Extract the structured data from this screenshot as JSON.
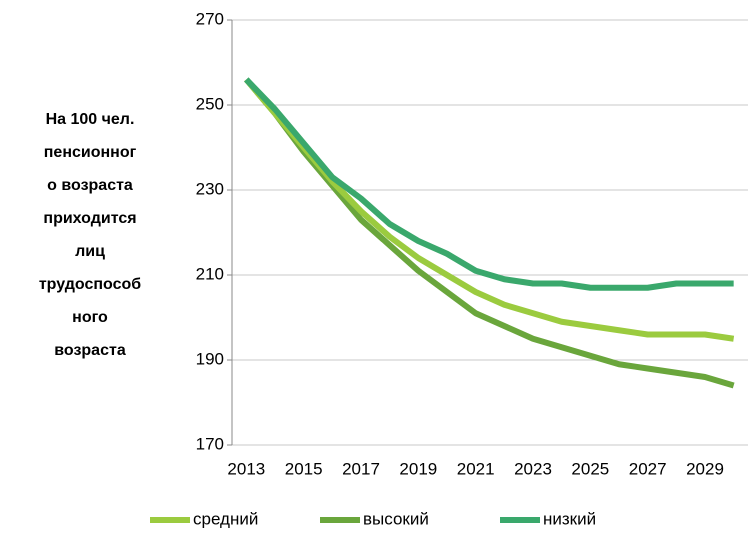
{
  "chart_data": {
    "type": "line",
    "ylabel": [
      "На 100 чел.",
      "пенсионног",
      "о возраста",
      "приходится",
      "лиц",
      "трудоспособ",
      "ного",
      "возраста"
    ],
    "categories": [
      "2013",
      null,
      "2015",
      null,
      "2017",
      null,
      "2019",
      null,
      "2021",
      null,
      "2023",
      null,
      "2025",
      null,
      "2027",
      null,
      "2029",
      null
    ],
    "series": [
      {
        "name": "средний",
        "color": "#9bcb3f",
        "values": [
          256,
          248,
          240,
          232,
          225,
          219,
          214,
          210,
          206,
          203,
          201,
          199,
          198,
          197,
          196,
          196,
          196,
          195
        ]
      },
      {
        "name": "высокий",
        "color": "#6aa63c",
        "values": [
          256,
          248,
          239,
          231,
          223,
          217,
          211,
          206,
          201,
          198,
          195,
          193,
          191,
          189,
          188,
          187,
          186,
          184
        ]
      },
      {
        "name": "низкий",
        "color": "#3aa86c",
        "values": [
          256,
          249,
          241,
          233,
          228,
          222,
          218,
          215,
          211,
          209,
          208,
          208,
          207,
          207,
          207,
          208,
          208,
          208
        ]
      }
    ],
    "ylim": [
      170,
      270
    ],
    "yticks": [
      170,
      190,
      210,
      230,
      250,
      270
    ],
    "grid": true,
    "legend": "bottom"
  }
}
